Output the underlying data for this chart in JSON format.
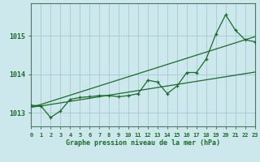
{
  "xlabel": "Graphe pression niveau de la mer (hPa)",
  "bg_color": "#cce8ec",
  "grid_color": "#aacdd4",
  "line_color": "#1a6b2a",
  "spine_color": "#4a7a5a",
  "x": [
    0,
    1,
    2,
    3,
    4,
    5,
    6,
    7,
    8,
    9,
    10,
    11,
    12,
    13,
    14,
    15,
    16,
    17,
    18,
    19,
    20,
    21,
    22,
    23
  ],
  "jagged": [
    1013.2,
    1013.18,
    1012.88,
    1013.05,
    1013.35,
    1013.4,
    1013.42,
    1013.45,
    1013.45,
    1013.42,
    1013.45,
    1013.5,
    1013.85,
    1013.8,
    1013.5,
    1013.7,
    1014.05,
    1014.05,
    1014.4,
    1015.05,
    1015.55,
    1015.15,
    1014.9,
    1014.85
  ],
  "straight1": [
    1013.15,
    1013.18,
    1013.22,
    1013.26,
    1013.3,
    1013.34,
    1013.38,
    1013.42,
    1013.46,
    1013.5,
    1013.54,
    1013.58,
    1013.62,
    1013.66,
    1013.7,
    1013.74,
    1013.78,
    1013.82,
    1013.86,
    1013.9,
    1013.94,
    1013.98,
    1014.02,
    1014.06
  ],
  "straight2": [
    1013.15,
    1013.22,
    1013.3,
    1013.38,
    1013.46,
    1013.54,
    1013.62,
    1013.7,
    1013.78,
    1013.86,
    1013.94,
    1014.02,
    1014.1,
    1014.18,
    1014.26,
    1014.34,
    1014.42,
    1014.5,
    1014.58,
    1014.66,
    1014.74,
    1014.82,
    1014.9,
    1014.98
  ],
  "ylim": [
    1012.65,
    1015.85
  ],
  "yticks": [
    1013,
    1014,
    1015
  ],
  "xlim": [
    0,
    23
  ]
}
